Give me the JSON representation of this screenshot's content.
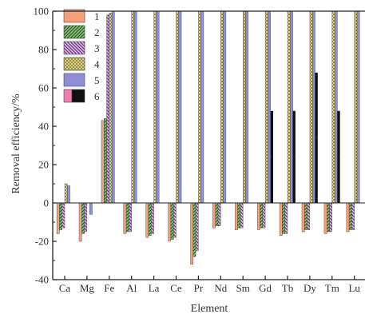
{
  "chart_data": {
    "type": "bar",
    "title": "",
    "xlabel": "Element",
    "ylabel": "Removal efficiency/%",
    "ylim": [
      -40,
      100
    ],
    "yticks": [
      -40,
      -20,
      0,
      20,
      40,
      60,
      80,
      100
    ],
    "grid": false,
    "legend_placement": "top-left",
    "categories": [
      "Ca",
      "Mg",
      "Fe",
      "Al",
      "La",
      "Ce",
      "Pr",
      "Nd",
      "Sm",
      "Gd",
      "Tb",
      "Dy",
      "Tm",
      "Lu"
    ],
    "series": [
      {
        "name": "1",
        "color": "#f3a07a",
        "pattern": "solid",
        "values": [
          -16,
          -20,
          43,
          -16,
          -18,
          -20,
          -32,
          -13,
          -14,
          -14,
          -17,
          -15,
          -16,
          -15
        ]
      },
      {
        "name": "2",
        "color": "#4a8a3a",
        "pattern": "diag-down",
        "values": [
          -14,
          -16,
          44,
          -15,
          -17,
          -19,
          -28,
          -12,
          -13,
          -13,
          -16,
          -14,
          -15,
          -14
        ]
      },
      {
        "name": "3",
        "color": "#b07ac0",
        "pattern": "diag-up",
        "values": [
          -13,
          -15,
          98,
          -15,
          -16,
          -18,
          -25,
          -12,
          -13,
          -13,
          -16,
          -14,
          -15,
          -14
        ]
      },
      {
        "name": "4",
        "color": "#d8d070",
        "pattern": "cross",
        "values": [
          10,
          0,
          99,
          100,
          100,
          100,
          100,
          100,
          100,
          100,
          100,
          100,
          100,
          100
        ]
      },
      {
        "name": "5",
        "color": "#8e8ed8",
        "pattern": "solid",
        "values": [
          9,
          -6,
          100,
          100,
          100,
          100,
          100,
          100,
          100,
          100,
          100,
          100,
          100,
          100
        ]
      },
      {
        "name": "6",
        "color": "#111111",
        "pattern": "pink-black",
        "values": [
          0,
          0,
          0,
          0,
          0,
          0,
          0,
          0,
          0,
          48,
          48,
          68,
          48,
          0
        ]
      }
    ]
  }
}
